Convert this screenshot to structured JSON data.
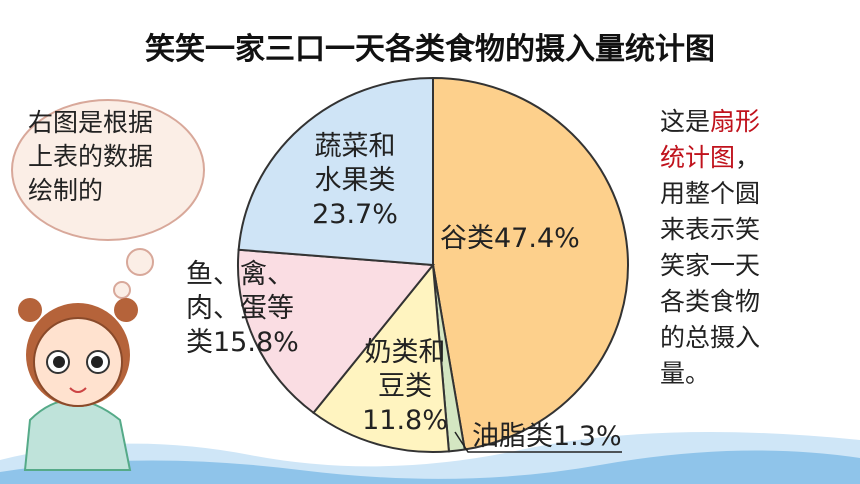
{
  "chart_data": {
    "type": "pie",
    "title": "笑笑一家三口一天各类食物的摄入量统计图",
    "categories": [
      "谷类",
      "油脂类",
      "奶类和\n豆类",
      "鱼、禽、\n肉、蛋等\n类",
      "蔬菜和\n水果类"
    ],
    "values": [
      47.4,
      1.3,
      11.8,
      15.8,
      23.7
    ],
    "value_labels": [
      "47.4%",
      "1.3%",
      "11.8%",
      "15.8%",
      "23.7%"
    ],
    "colors": [
      "#fdd08c",
      "#d4e6c2",
      "#fff4c0",
      "#fadde3",
      "#cfe4f6"
    ]
  },
  "bubble": "右图是根据\n上表的数据\n绘制的",
  "note": {
    "before": "这是",
    "highlight": "扇形\n统计图",
    "after": "，\n用整个圆\n来表示笑\n笑家一天\n各类食物\n的总摄入\n量。"
  }
}
